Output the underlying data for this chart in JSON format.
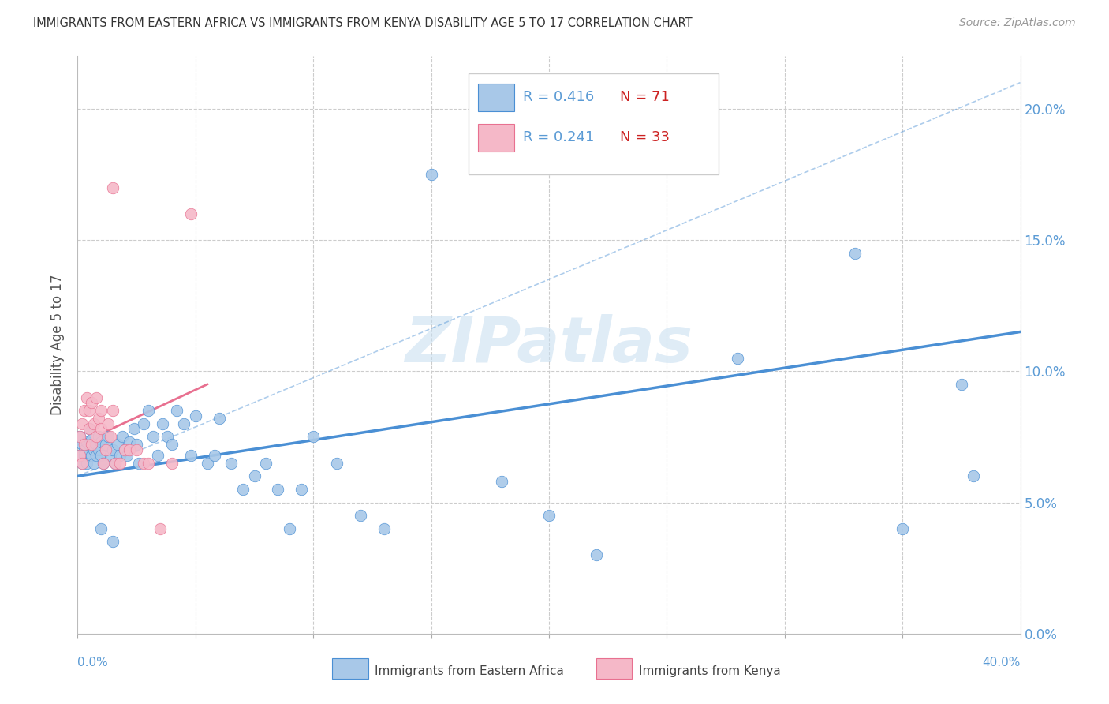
{
  "title": "IMMIGRANTS FROM EASTERN AFRICA VS IMMIGRANTS FROM KENYA DISABILITY AGE 5 TO 17 CORRELATION CHART",
  "source": "Source: ZipAtlas.com",
  "ylabel": "Disability Age 5 to 17",
  "legend_label1": "Immigrants from Eastern Africa",
  "legend_label2": "Immigrants from Kenya",
  "R1": 0.416,
  "N1": 71,
  "R2": 0.241,
  "N2": 33,
  "color_blue": "#a8c8e8",
  "color_pink": "#f5b8c8",
  "line_blue": "#4a8fd4",
  "line_pink": "#e87090",
  "axis_color": "#5b9bd5",
  "red_color": "#cc2222",
  "watermark": "ZIPatlas",
  "xlim": [
    0.0,
    0.4
  ],
  "ylim": [
    0.0,
    0.22
  ],
  "blue_x": [
    0.001,
    0.001,
    0.002,
    0.002,
    0.003,
    0.003,
    0.004,
    0.004,
    0.005,
    0.005,
    0.006,
    0.006,
    0.007,
    0.007,
    0.008,
    0.008,
    0.009,
    0.009,
    0.01,
    0.01,
    0.011,
    0.012,
    0.013,
    0.014,
    0.015,
    0.016,
    0.017,
    0.018,
    0.019,
    0.02,
    0.021,
    0.022,
    0.024,
    0.025,
    0.026,
    0.028,
    0.03,
    0.032,
    0.034,
    0.036,
    0.038,
    0.04,
    0.042,
    0.045,
    0.048,
    0.05,
    0.055,
    0.058,
    0.06,
    0.065,
    0.07,
    0.075,
    0.08,
    0.085,
    0.09,
    0.095,
    0.1,
    0.11,
    0.12,
    0.13,
    0.15,
    0.18,
    0.2,
    0.22,
    0.28,
    0.33,
    0.35,
    0.375,
    0.38,
    0.01,
    0.015
  ],
  "blue_y": [
    0.068,
    0.075,
    0.065,
    0.072,
    0.07,
    0.068,
    0.073,
    0.065,
    0.072,
    0.078,
    0.068,
    0.074,
    0.07,
    0.065,
    0.072,
    0.068,
    0.075,
    0.07,
    0.073,
    0.068,
    0.065,
    0.072,
    0.075,
    0.068,
    0.07,
    0.065,
    0.072,
    0.068,
    0.075,
    0.07,
    0.068,
    0.073,
    0.078,
    0.072,
    0.065,
    0.08,
    0.085,
    0.075,
    0.068,
    0.08,
    0.075,
    0.072,
    0.085,
    0.08,
    0.068,
    0.083,
    0.065,
    0.068,
    0.082,
    0.065,
    0.055,
    0.06,
    0.065,
    0.055,
    0.04,
    0.055,
    0.075,
    0.065,
    0.045,
    0.04,
    0.175,
    0.058,
    0.045,
    0.03,
    0.105,
    0.145,
    0.04,
    0.095,
    0.06,
    0.04,
    0.035
  ],
  "pink_x": [
    0.001,
    0.001,
    0.002,
    0.002,
    0.003,
    0.003,
    0.004,
    0.005,
    0.005,
    0.006,
    0.006,
    0.007,
    0.008,
    0.008,
    0.009,
    0.01,
    0.01,
    0.011,
    0.012,
    0.013,
    0.014,
    0.015,
    0.016,
    0.018,
    0.02,
    0.022,
    0.025,
    0.028,
    0.03,
    0.035,
    0.04,
    0.048,
    0.015
  ],
  "pink_y": [
    0.068,
    0.075,
    0.065,
    0.08,
    0.072,
    0.085,
    0.09,
    0.078,
    0.085,
    0.072,
    0.088,
    0.08,
    0.075,
    0.09,
    0.082,
    0.085,
    0.078,
    0.065,
    0.07,
    0.08,
    0.075,
    0.085,
    0.065,
    0.065,
    0.07,
    0.07,
    0.07,
    0.065,
    0.065,
    0.04,
    0.065,
    0.16,
    0.17
  ],
  "blue_line_x": [
    0.0,
    0.4
  ],
  "blue_line_y": [
    0.06,
    0.115
  ],
  "pink_line_x": [
    0.0,
    0.055
  ],
  "pink_line_y": [
    0.072,
    0.095
  ],
  "dash_line_x": [
    0.0,
    0.4
  ],
  "dash_line_y": [
    0.06,
    0.21
  ]
}
